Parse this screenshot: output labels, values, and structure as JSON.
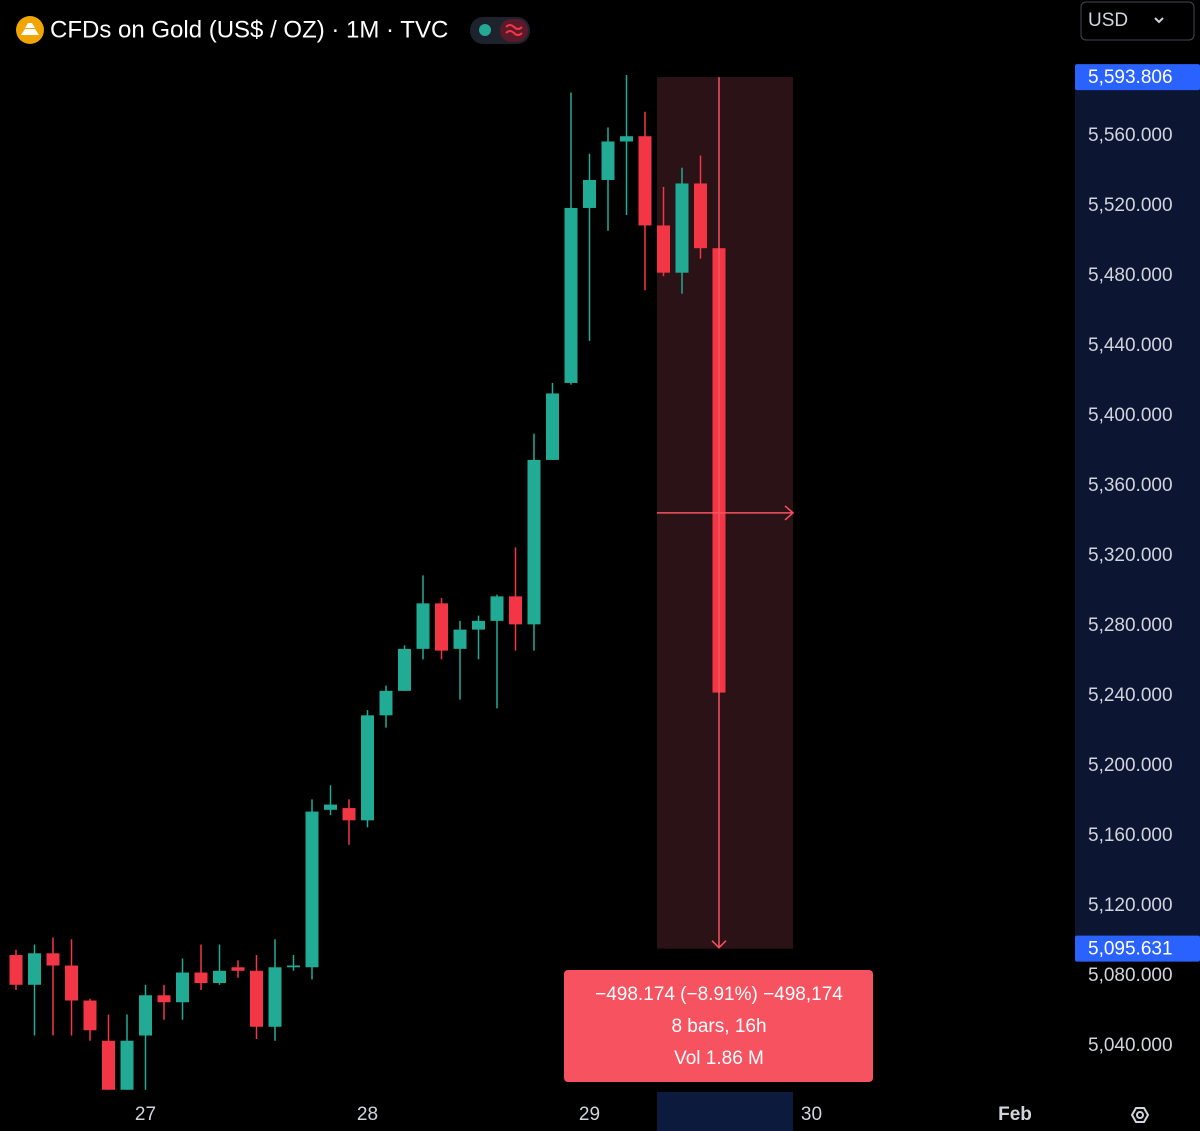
{
  "header": {
    "title": "CFDs on Gold (US$ / OZ) · 1M · TVC",
    "currency": "USD"
  },
  "chart_data": {
    "type": "candlestick",
    "categories": [
      null,
      null,
      null,
      null,
      null,
      null,
      null,
      "27",
      null,
      null,
      null,
      null,
      null,
      null,
      null,
      null,
      null,
      null,
      null,
      "28",
      null,
      null,
      null,
      null,
      null,
      null,
      null,
      null,
      null,
      null,
      null,
      "29",
      null,
      null,
      null,
      null,
      null,
      null,
      null,
      null,
      null,
      null,
      null,
      "30",
      null,
      null,
      null,
      null,
      null,
      null,
      null,
      null,
      null,
      null,
      "Feb"
    ],
    "open": [
      5092,
      5075,
      5093,
      5086,
      5066,
      5043,
      5015,
      5046,
      5069,
      5065,
      5082,
      5076,
      5085,
      5083,
      5051,
      5085,
      5085,
      5175,
      5176,
      5169,
      5229,
      5243,
      5267,
      5293,
      5267,
      5278,
      5283,
      5297,
      5281,
      5375,
      5419,
      5519,
      5535,
      5557,
      5560,
      5509,
      5482,
      5533,
      5496,
      null,
      null,
      null,
      null,
      null,
      null,
      null,
      null,
      null,
      null,
      null,
      null,
      null,
      null,
      null,
      null
    ],
    "high": [
      5095,
      5098,
      5102,
      5101,
      5067,
      5058,
      5058,
      5075,
      5075,
      5090,
      5098,
      5098,
      5089,
      5092,
      5101,
      5092,
      5181,
      5189,
      5181,
      5232,
      5246,
      5269,
      5309,
      5296,
      5283,
      5286,
      5298,
      5325,
      5390,
      5419,
      5585,
      5550,
      5565,
      5595,
      5574,
      5531,
      5542,
      5549,
      5496,
      null,
      null,
      null,
      null,
      null,
      null,
      null,
      null,
      null,
      null,
      null,
      null,
      null,
      null,
      null,
      null
    ],
    "low": [
      5072,
      5046,
      5046,
      5046,
      5043,
      5015,
      5015,
      5015,
      5055,
      5055,
      5072,
      5075,
      5079,
      5044,
      5043,
      5083,
      5078,
      5172,
      5155,
      5165,
      5222,
      5243,
      5261,
      5261,
      5238,
      5261,
      5233,
      5266,
      5266,
      5375,
      5418,
      5443,
      5506,
      5515,
      5472,
      5480,
      5470,
      5490,
      5242,
      null,
      null,
      null,
      null,
      null,
      null,
      null,
      null,
      null,
      null,
      null,
      null,
      null,
      null,
      null,
      null
    ],
    "close": [
      5075,
      5093,
      5086,
      5066,
      5049,
      5015,
      5043,
      5069,
      5065,
      5082,
      5076,
      5083,
      5083,
      5051,
      5085,
      5086,
      5174,
      5178,
      5169,
      5229,
      5243,
      5267,
      5293,
      5266,
      5278,
      5283,
      5297,
      5281,
      5375,
      5413,
      5519,
      5535,
      5557,
      5560,
      5509,
      5482,
      5533,
      5496,
      5242,
      null,
      null,
      null,
      null,
      null,
      null,
      null,
      null,
      null,
      null,
      null,
      null,
      null,
      null,
      null,
      null
    ],
    "up_color": "#22ab94",
    "down_color": "#f23645",
    "ylim": [
      5012,
      5615
    ],
    "yticks": [
      {
        "value": 5040,
        "label": "5,040.000"
      },
      {
        "value": 5080,
        "label": "5,080.000"
      },
      {
        "value": 5120,
        "label": "5,120.000"
      },
      {
        "value": 5160,
        "label": "5,160.000"
      },
      {
        "value": 5200,
        "label": "5,200.000"
      },
      {
        "value": 5240,
        "label": "5,240.000"
      },
      {
        "value": 5280,
        "label": "5,280.000"
      },
      {
        "value": 5320,
        "label": "5,320.000"
      },
      {
        "value": 5360,
        "label": "5,360.000"
      },
      {
        "value": 5400,
        "label": "5,400.000"
      },
      {
        "value": 5440,
        "label": "5,440.000"
      },
      {
        "value": 5480,
        "label": "5,480.000"
      },
      {
        "value": 5520,
        "label": "5,520.000"
      },
      {
        "value": 5560,
        "label": "5,560.000"
      }
    ],
    "measure": {
      "range": [
        {
          "value": 5593.806,
          "label": "5,593.806"
        },
        {
          "value": 5095.631,
          "label": "5,095.631"
        }
      ],
      "lines": [
        "−498.174 (−8.91%) −498,174",
        "8 bars, 16h",
        "Vol 1.86 M"
      ]
    }
  }
}
